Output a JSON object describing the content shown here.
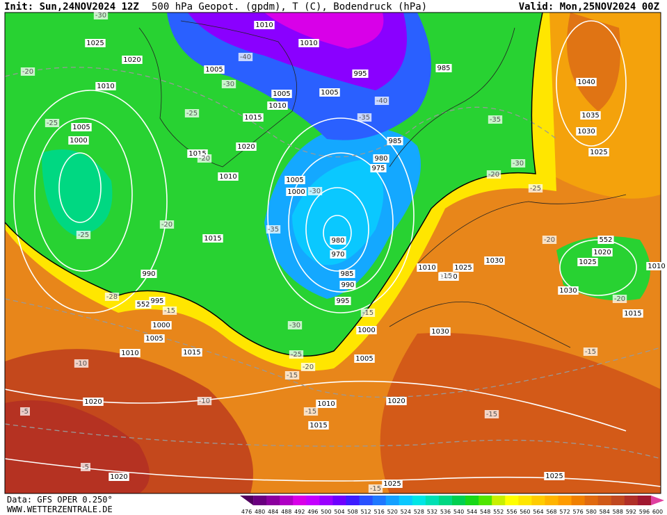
{
  "header": {
    "init": "Init: Sun,24NOV2024 12Z",
    "title": "500 hPa Geopot. (gpdm), T (C), Bodendruck (hPa)",
    "valid": "Valid: Mon,25NOV2024 00Z"
  },
  "map": {
    "isobar_labels": [
      1025,
      1020,
      1010,
      1005,
      1000,
      1010,
      1010,
      1005,
      1005,
      1010,
      1015,
      1020,
      1015,
      1010,
      995,
      985,
      1005,
      985,
      980,
      975,
      1005,
      1000,
      1015,
      990,
      995,
      1000,
      1005,
      1010,
      1015,
      970,
      985,
      990,
      995,
      1000,
      1005,
      1010,
      1015,
      1020,
      1020,
      1010,
      1025,
      1020,
      1030,
      1030,
      1020,
      1025,
      1025,
      1040,
      1035,
      1030,
      1025,
      1020,
      1025,
      1030,
      1015,
      1010,
      552,
      552,
      980
    ],
    "temperature_labels": [
      -30,
      -20,
      -25,
      -30,
      -40,
      -25,
      -20,
      -20,
      -25,
      -35,
      -40,
      -35,
      -30,
      -20,
      -25,
      -20,
      -30,
      -35,
      -15,
      -15,
      -28,
      -30,
      -25,
      -20,
      -15,
      -15,
      -10,
      -10,
      -5,
      -5,
      -15,
      -15,
      -15,
      -20,
      -15
    ]
  },
  "footer": {
    "source": "Data: GFS OPER 0.250°",
    "website": "WWW.WETTERZENTRALE.DE"
  },
  "colorbar": {
    "labels": [
      476,
      480,
      484,
      488,
      492,
      496,
      500,
      504,
      508,
      512,
      516,
      520,
      524,
      528,
      532,
      536,
      540,
      544,
      548,
      552,
      556,
      560,
      564,
      568,
      572,
      576,
      580,
      584,
      588,
      592,
      596,
      600
    ],
    "colors": [
      "#50005f",
      "#6a007f",
      "#8b009e",
      "#b000c4",
      "#d800e8",
      "#c400ff",
      "#9a00ff",
      "#6e00ff",
      "#3c1cff",
      "#2850ff",
      "#1e78ff",
      "#14a0ff",
      "#0ac8ff",
      "#00e6e6",
      "#00e0b4",
      "#00d882",
      "#00d050",
      "#18d818",
      "#50e600",
      "#c8f000",
      "#ffff00",
      "#ffe600",
      "#ffcc00",
      "#ffb400",
      "#ff9c00",
      "#f08000",
      "#e06a10",
      "#d05a18",
      "#c04820",
      "#b03028",
      "#a01830",
      "#e040a0"
    ]
  }
}
